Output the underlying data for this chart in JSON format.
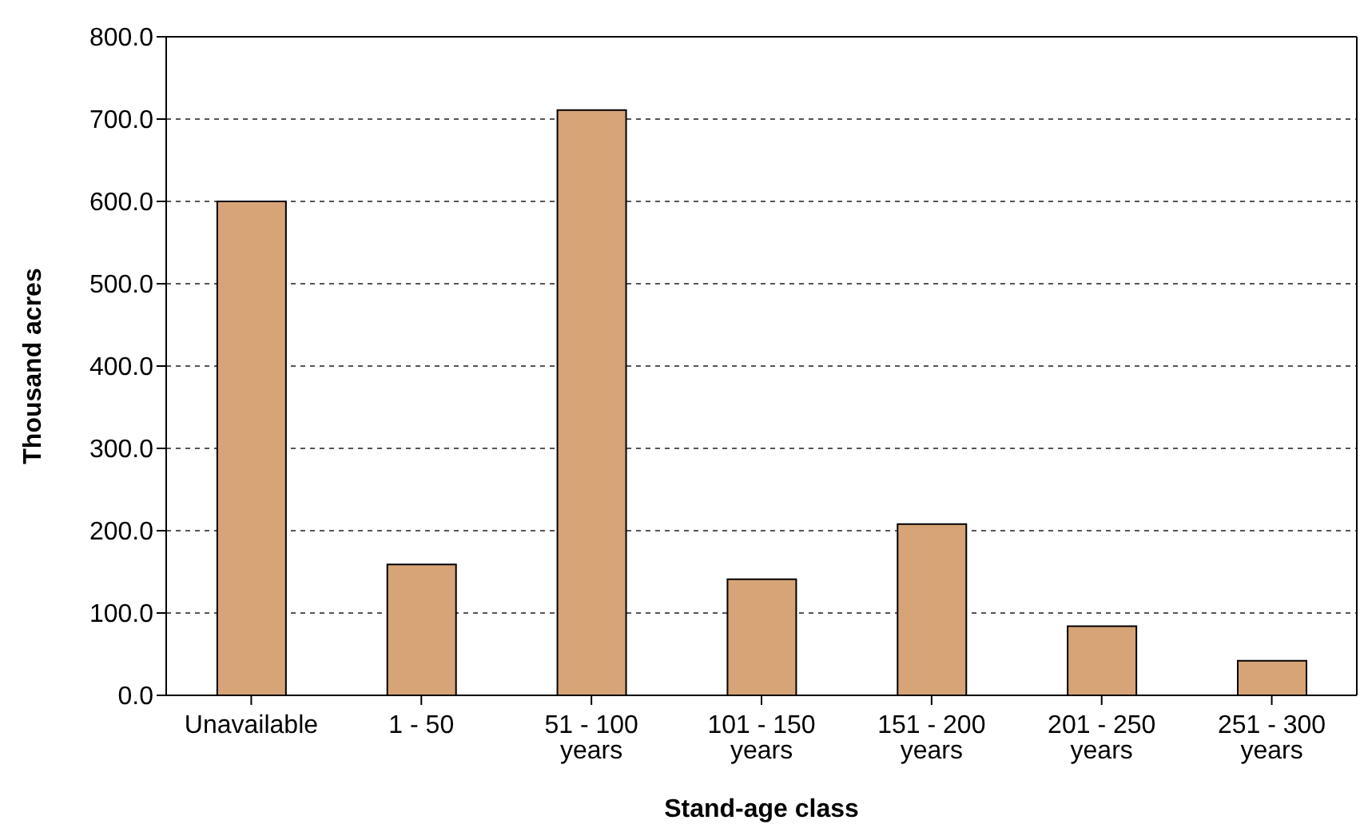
{
  "chart_data": {
    "type": "bar",
    "xlabel": "Stand-age class",
    "ylabel": "Thousand acres",
    "categories": [
      "Unavailable",
      "1 - 50",
      "51 - 100 years",
      "101 - 150 years",
      "151 - 200 years",
      "201 - 250 years",
      "251 - 300 years"
    ],
    "values": [
      600,
      159,
      711,
      141,
      208,
      84,
      42
    ],
    "color": "#d6a477",
    "ylim": [
      0,
      800
    ],
    "yticks": [
      {
        "value": 0,
        "label": "0.0"
      },
      {
        "value": 100,
        "label": "100.0"
      },
      {
        "value": 200,
        "label": "200.0"
      },
      {
        "value": 300,
        "label": "300.0"
      },
      {
        "value": 400,
        "label": "400.0"
      },
      {
        "value": 500,
        "label": "500.0"
      },
      {
        "value": 600,
        "label": "600.0"
      },
      {
        "value": 700,
        "label": "700.0"
      },
      {
        "value": 800,
        "label": "800.0"
      }
    ],
    "grid": "y"
  }
}
